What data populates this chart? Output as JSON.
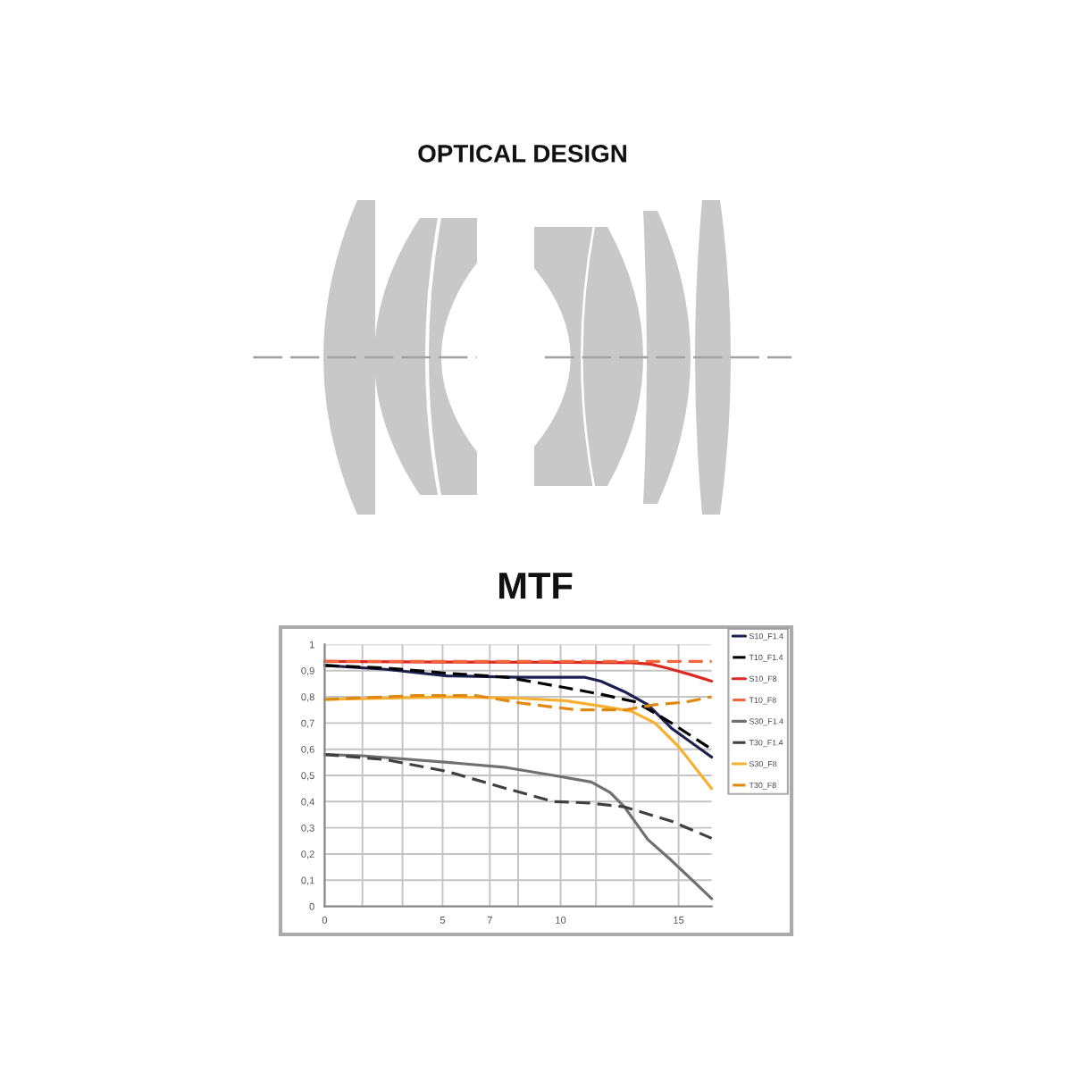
{
  "chart_data": [
    {
      "type": "other",
      "title": "OPTICAL DESIGN"
    },
    {
      "type": "line",
      "title": "MTF",
      "xlim": [
        0,
        16.4
      ],
      "ylim": [
        0,
        1
      ],
      "xticks": [
        0,
        {
          "value": 1.6,
          "label": null
        },
        {
          "value": 3.3,
          "label": null
        },
        5,
        7,
        {
          "value": 8.2,
          "label": null
        },
        10,
        {
          "value": 11.5,
          "label": null
        },
        {
          "value": 13.1,
          "label": null
        },
        15
      ],
      "yticks": [
        0,
        {
          "value": 0.1,
          "label": "0,1"
        },
        {
          "value": 0.2,
          "label": "0,2"
        },
        {
          "value": 0.3,
          "label": "0,3"
        },
        {
          "value": 0.4,
          "label": "0,4"
        },
        {
          "value": 0.5,
          "label": "0,5"
        },
        {
          "value": 0.6,
          "label": "0,6"
        },
        {
          "value": 0.7,
          "label": "0,7"
        },
        {
          "value": 0.8,
          "label": "0,8"
        },
        {
          "value": 0.9,
          "label": "0,9"
        },
        1
      ],
      "grid": true,
      "legend": "top right",
      "series": [
        {
          "name": "S10_F1.4",
          "color": "#1c2050",
          "line_style": "solid",
          "x": [
            0,
            2.6,
            5.2,
            8.2,
            11,
            11.7,
            12.7,
            13.7,
            14.7,
            16.4
          ],
          "values": [
            0.92,
            0.905,
            0.88,
            0.875,
            0.875,
            0.86,
            0.82,
            0.77,
            0.68,
            0.57
          ]
        },
        {
          "name": "T10_F1.4",
          "color": "#000000",
          "line_style": "dashed",
          "x": [
            0,
            2.6,
            5.2,
            7.7,
            10.2,
            11.7,
            13.2,
            14.7,
            16.4
          ],
          "values": [
            0.92,
            0.91,
            0.89,
            0.875,
            0.835,
            0.81,
            0.78,
            0.7,
            0.6
          ]
        },
        {
          "name": "S10_F8",
          "color": "#dc2a22",
          "line_style": "solid",
          "x": [
            0,
            5,
            10,
            13,
            13.8,
            14.5,
            15.5,
            16.4
          ],
          "values": [
            0.935,
            0.933,
            0.932,
            0.93,
            0.925,
            0.91,
            0.885,
            0.86
          ]
        },
        {
          "name": "T10_F8",
          "color": "#f2643a",
          "line_style": "dashed",
          "x": [
            0,
            5,
            10,
            14,
            16.4
          ],
          "values": [
            0.935,
            0.935,
            0.935,
            0.935,
            0.935
          ]
        },
        {
          "name": "S30_F1.4",
          "color": "#707070",
          "line_style": "solid",
          "x": [
            0,
            1.6,
            5.2,
            7.7,
            9.7,
            11.3,
            12.1,
            12.7,
            13.7,
            14.7,
            16.4
          ],
          "values": [
            0.58,
            0.575,
            0.55,
            0.53,
            0.5,
            0.475,
            0.435,
            0.38,
            0.255,
            0.175,
            0.03
          ]
        },
        {
          "name": "T30_F1.4",
          "color": "#404040",
          "line_style": "dashed",
          "x": [
            0,
            2.6,
            5.2,
            7.7,
            9.7,
            11.2,
            12.7,
            14.7,
            16.4
          ],
          "values": [
            0.58,
            0.56,
            0.515,
            0.45,
            0.4,
            0.395,
            0.38,
            0.325,
            0.26
          ]
        },
        {
          "name": "S30_F8",
          "color": "#f8b030",
          "line_style": "solid",
          "x": [
            0,
            5.2,
            8.2,
            10.2,
            11.7,
            13,
            14,
            15,
            16.4
          ],
          "values": [
            0.79,
            0.8,
            0.795,
            0.785,
            0.765,
            0.745,
            0.7,
            0.61,
            0.45
          ]
        },
        {
          "name": "T30_F8",
          "color": "#e08810",
          "line_style": "dashed",
          "x": [
            0,
            3.9,
            6.4,
            8.4,
            10.7,
            12.7,
            14,
            15.3,
            16.4
          ],
          "values": [
            0.79,
            0.805,
            0.805,
            0.775,
            0.75,
            0.75,
            0.77,
            0.78,
            0.8
          ]
        }
      ]
    }
  ]
}
